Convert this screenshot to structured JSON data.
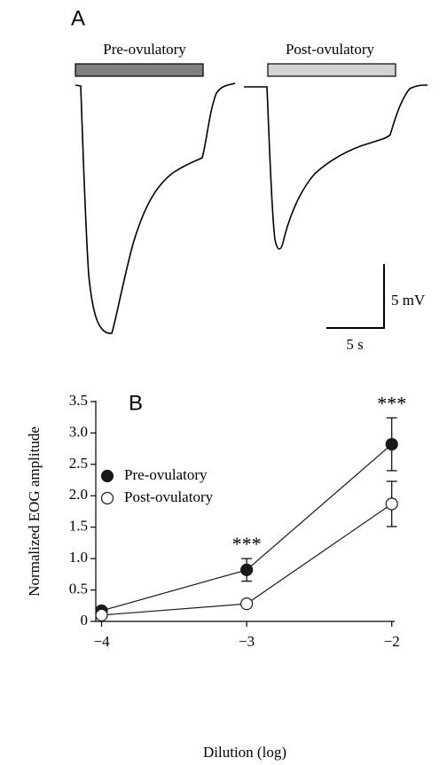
{
  "panel_a": {
    "label": "A",
    "bars": [
      {
        "label": "Pre-ovulatory",
        "color": "#808080"
      },
      {
        "label": "Post-ovulatory",
        "color": "#d3d3d3"
      }
    ],
    "scale_y": "5 mV",
    "scale_x": "5 s"
  },
  "chart_data": {
    "type": "line",
    "panel": "B",
    "xlabel": "Dilution (log)",
    "ylabel": "Normalized EOG amplitude",
    "x": [
      -4,
      -3,
      -2
    ],
    "xlim": [
      -4.04,
      -1.98
    ],
    "xticks": [
      {
        "value": -4,
        "label": "−4"
      },
      {
        "value": -3,
        "label": "−3"
      },
      {
        "value": -2,
        "label": "−2"
      }
    ],
    "ylim": [
      0,
      3.5
    ],
    "yticks": [
      0,
      0.5,
      {
        "value": 1,
        "label": "1.0"
      },
      1.5,
      {
        "value": 2,
        "label": "2.0"
      },
      2.5,
      {
        "value": 3,
        "label": "3.0"
      },
      3.5
    ],
    "series": [
      {
        "name": "Pre-ovulatory",
        "color": "#1a1a1a",
        "filled": true,
        "values": [
          0.17,
          0.82,
          2.82
        ],
        "errors": [
          0.04,
          0.18,
          0.42
        ]
      },
      {
        "name": "Post-ovulatory",
        "color": "#1a1a1a",
        "filled": false,
        "values": [
          0.1,
          0.28,
          1.87
        ],
        "errors": [
          0.03,
          0.04,
          0.36
        ]
      }
    ],
    "annotations": [
      {
        "text": "***",
        "x": -3
      },
      {
        "text": "***",
        "x": -2
      }
    ],
    "legend": "upper-left"
  }
}
